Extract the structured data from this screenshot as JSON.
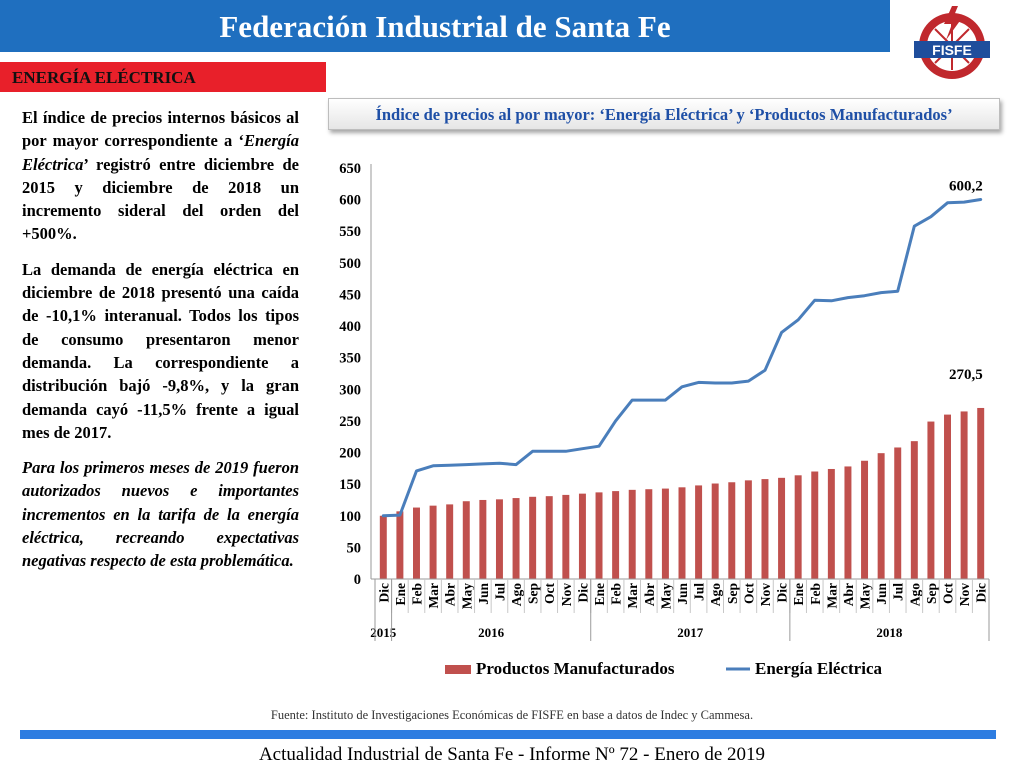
{
  "header": {
    "title": "Federación Industrial de Santa Fe",
    "logo_text": "FISFE"
  },
  "section": {
    "label": "ENERGÍA ELÉCTRICA"
  },
  "body": {
    "paragraph1_a": "El índice de precios internos básicos al por mayor correspondiente a ‘",
    "paragraph1_em": "Energía Eléctrica",
    "paragraph1_b": "’ registró entre diciembre de 2015 y diciembre de 2018 un incremento sideral del orden del +500%.",
    "paragraph2": "La demanda de energía eléctrica en diciembre de 2018 presentó una caída de -10,1% interanual. Todos los tipos de consumo presentaron menor demanda. La correspondiente a distribución bajó -9,8%, y la gran demanda cayó -11,5% frente a igual mes de 2017.",
    "paragraph3": "Para los primeros meses de 2019 fueron autorizados nuevos e importantes incrementos en la tarifa de la energía eléctrica, recreando expectativas negativas respecto de esta problemática."
  },
  "colors": {
    "title_bar": "#1f6fbf",
    "section_bar": "#e8202a",
    "bar_series": "#c0504d",
    "line_series": "#4a7ebb",
    "chart_title_text": "#1e4fa6"
  },
  "chart_data": {
    "type": "bar",
    "title": "Índice de precios al por mayor: ‘Energía Eléctrica’ y ‘Productos Manufacturados’",
    "ylim": [
      0,
      650
    ],
    "yticks": [
      "0",
      "50",
      "100",
      "150",
      "200",
      "250",
      "300",
      "350",
      "400",
      "450",
      "500",
      "550",
      "600",
      "650"
    ],
    "categories": [
      "Dic",
      "Ene",
      "Feb",
      "Mar",
      "Abr",
      "May",
      "Jun",
      "Jul",
      "Ago",
      "Sep",
      "Oct",
      "Nov",
      "Dic",
      "Ene",
      "Feb",
      "Mar",
      "Abr",
      "May",
      "Jun",
      "Jul",
      "Ago",
      "Sep",
      "Oct",
      "Nov",
      "Dic",
      "Ene",
      "Feb",
      "Mar",
      "Abr",
      "May",
      "Jun",
      "Jul",
      "Ago",
      "Sep",
      "Oct",
      "Nov",
      "Dic"
    ],
    "year_groups": [
      {
        "label": "2015",
        "count": 1
      },
      {
        "label": "2016",
        "count": 12
      },
      {
        "label": "2017",
        "count": 12
      },
      {
        "label": "2018",
        "count": 12
      }
    ],
    "series": [
      {
        "name": "Productos Manufacturados",
        "kind": "bar",
        "color": "#c0504d",
        "values": [
          100,
          107,
          113,
          116,
          118,
          123,
          125,
          126,
          128,
          130,
          131,
          133,
          135,
          137,
          139,
          141,
          142,
          143,
          145,
          148,
          151,
          153,
          156,
          158,
          160,
          164,
          170,
          174,
          178,
          187,
          199,
          208,
          218,
          249,
          260,
          265,
          270.5
        ]
      },
      {
        "name": "Energía Eléctrica",
        "kind": "line",
        "color": "#4a7ebb",
        "values": [
          100,
          101,
          171,
          179,
          180,
          181,
          182,
          183,
          181,
          202,
          202,
          202,
          206,
          210,
          250,
          283,
          283,
          283,
          304,
          311,
          310,
          310,
          313,
          330,
          390,
          410,
          441,
          440,
          445,
          448,
          453,
          455,
          558,
          573,
          595,
          596,
          600.2
        ]
      }
    ],
    "annotations": [
      "600,2",
      "270,5"
    ],
    "legend_position": "bottom"
  },
  "footer": {
    "source": "Fuente: Instituto de Investigaciones Económicas de FISFE en base a datos de Indec y Cammesa.",
    "report": "Actualidad Industrial de Santa Fe - Informe Nº 72 - Enero de 2019"
  }
}
